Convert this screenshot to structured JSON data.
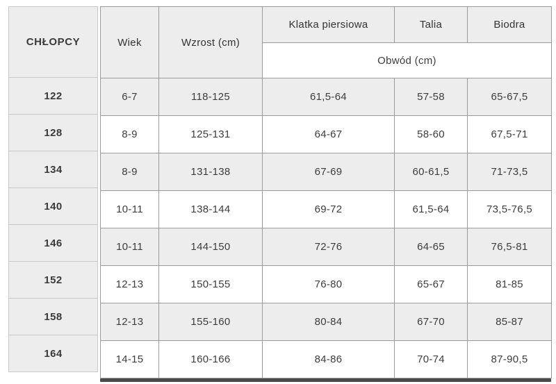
{
  "chart_data": {
    "type": "table",
    "title": "CHŁOPCY",
    "columns": [
      "CHŁOPCY",
      "Wiek",
      "Wzrost (cm)",
      "Klatka piersiowa",
      "Talia",
      "Biodra"
    ],
    "grouped_subheader": {
      "label": "Obwód (cm)",
      "applies_to": [
        "Klatka piersiowa",
        "Talia",
        "Biodra"
      ]
    },
    "rows": [
      [
        "122",
        "6-7",
        "118-125",
        "61,5-64",
        "57-58",
        "65-67,5"
      ],
      [
        "128",
        "8-9",
        "125-131",
        "64-67",
        "58-60",
        "67,5-71"
      ],
      [
        "134",
        "8-9",
        "131-138",
        "67-69",
        "60-61,5",
        "71-73,5"
      ],
      [
        "140",
        "10-11",
        "138-144",
        "69-72",
        "61,5-64",
        "73,5-76,5"
      ],
      [
        "146",
        "10-11",
        "144-150",
        "72-76",
        "64-65",
        "76,5-81"
      ],
      [
        "152",
        "12-13",
        "150-155",
        "76-80",
        "65-67",
        "81-85"
      ],
      [
        "158",
        "12-13",
        "155-160",
        "80-84",
        "67-70",
        "85-87"
      ],
      [
        "164",
        "14-15",
        "160-166",
        "84-86",
        "70-74",
        "87-90,5"
      ]
    ]
  },
  "header": {
    "chlopcy": "CHŁOPCY",
    "wiek": "Wiek",
    "wzrost": "Wzrost (cm)",
    "klatka": "Klatka piersiowa",
    "talia": "Talia",
    "biodra": "Biodra",
    "obwod": "Obwód (cm)"
  },
  "rows": [
    {
      "size": "122",
      "wiek": "6-7",
      "wzrost": "118-125",
      "klatka": "61,5-64",
      "talia": "57-58",
      "biodra": "65-67,5"
    },
    {
      "size": "128",
      "wiek": "8-9",
      "wzrost": "125-131",
      "klatka": "64-67",
      "talia": "58-60",
      "biodra": "67,5-71"
    },
    {
      "size": "134",
      "wiek": "8-9",
      "wzrost": "131-138",
      "klatka": "67-69",
      "talia": "60-61,5",
      "biodra": "71-73,5"
    },
    {
      "size": "140",
      "wiek": "10-11",
      "wzrost": "138-144",
      "klatka": "69-72",
      "talia": "61,5-64",
      "biodra": "73,5-76,5"
    },
    {
      "size": "146",
      "wiek": "10-11",
      "wzrost": "144-150",
      "klatka": "72-76",
      "talia": "64-65",
      "biodra": "76,5-81"
    },
    {
      "size": "152",
      "wiek": "12-13",
      "wzrost": "150-155",
      "klatka": "76-80",
      "talia": "65-67",
      "biodra": "81-85"
    },
    {
      "size": "158",
      "wiek": "12-13",
      "wzrost": "155-160",
      "klatka": "80-84",
      "talia": "67-70",
      "biodra": "85-87"
    },
    {
      "size": "164",
      "wiek": "14-15",
      "wzrost": "160-166",
      "klatka": "84-86",
      "talia": "70-74",
      "biodra": "87-90,5"
    }
  ],
  "colors": {
    "row_shade": "#ededed",
    "row_white": "#ffffff",
    "border_frozen": "#c9c9c9",
    "border_main": "#9a9a9a",
    "scrollbar": "#4a4a4a",
    "text": "#3d3d3d"
  }
}
